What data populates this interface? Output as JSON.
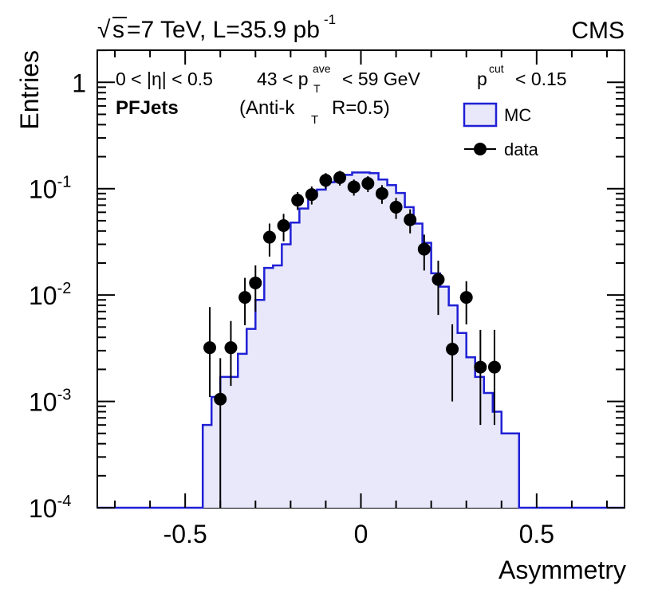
{
  "header": {
    "energy_sqrt": "√",
    "energy_s": "s",
    "energy_rest": "=7 TeV, L=35.9 pb",
    "lumi_exp": "-1",
    "experiment": "CMS"
  },
  "annotations": {
    "eta_cut": "0 < |η| < 0.5",
    "pt_left": "43 < p",
    "pt_sub": "T",
    "pt_sup": "ave",
    "pt_right": "< 59 GeV",
    "pcut_p": "p",
    "pcut_sup": "cut",
    "pcut_right": "< 0.15",
    "jet_type": "PFJets",
    "algo_left": "(Anti-k",
    "algo_sub": "T",
    "algo_right": "R=0.5)"
  },
  "legend": {
    "mc_label": "MC",
    "data_label": "data"
  },
  "colors": {
    "mc_line": "#1f1fd6",
    "mc_fill": "#e8e8fa",
    "data_marker": "#000000"
  },
  "chart_data": {
    "type": "histogram",
    "title": "",
    "xlabel": "Asymmetry",
    "ylabel": "Entries",
    "xlim": [
      -0.75,
      0.75
    ],
    "ylim": [
      0.0001,
      2
    ],
    "yscale": "log",
    "xticks": [
      -0.5,
      0,
      0.5
    ],
    "xtick_labels": [
      "-0.5",
      "0",
      "0.5"
    ],
    "yticks": [
      {
        "value": 1,
        "base": "1",
        "exp": ""
      },
      {
        "value": 0.1,
        "base": "10",
        "exp": "-1"
      },
      {
        "value": 0.01,
        "base": "10",
        "exp": "-2"
      },
      {
        "value": 0.001,
        "base": "10",
        "exp": "-3"
      },
      {
        "value": 0.0001,
        "base": "10",
        "exp": "-4"
      }
    ],
    "series": [
      {
        "name": "MC",
        "kind": "step-histogram",
        "bin_edges": [
          -0.75,
          -0.45,
          -0.425,
          -0.4,
          -0.375,
          -0.35,
          -0.325,
          -0.3,
          -0.275,
          -0.25,
          -0.225,
          -0.2,
          -0.175,
          -0.15,
          -0.125,
          -0.1,
          -0.075,
          -0.05,
          -0.025,
          0,
          0.025,
          0.05,
          0.075,
          0.1,
          0.125,
          0.15,
          0.175,
          0.2,
          0.225,
          0.25,
          0.275,
          0.3,
          0.325,
          0.35,
          0.375,
          0.4,
          0.425,
          0.45,
          0.475,
          0.75
        ],
        "values": [
          0.0001,
          0.0006,
          0.0011,
          0.0017,
          0.0017,
          0.0028,
          0.0048,
          0.009,
          0.018,
          0.019,
          0.03,
          0.048,
          0.065,
          0.085,
          0.098,
          0.115,
          0.126,
          0.135,
          0.142,
          0.142,
          0.14,
          0.122,
          0.108,
          0.091,
          0.067,
          0.047,
          0.031,
          0.016,
          0.012,
          0.008,
          0.0044,
          0.0026,
          0.0017,
          0.0012,
          0.0008,
          0.0005,
          0.0005,
          0.0001,
          0.0001
        ]
      },
      {
        "name": "data",
        "kind": "points-with-errors",
        "x": [
          -0.43,
          -0.4,
          -0.37,
          -0.33,
          -0.3,
          -0.26,
          -0.22,
          -0.18,
          -0.14,
          -0.1,
          -0.06,
          -0.02,
          0.02,
          0.06,
          0.1,
          0.14,
          0.18,
          0.22,
          0.26,
          0.3,
          0.34,
          0.38
        ],
        "y": [
          0.0032,
          0.00105,
          0.0032,
          0.0095,
          0.013,
          0.035,
          0.045,
          0.078,
          0.088,
          0.12,
          0.127,
          0.104,
          0.112,
          0.09,
          0.067,
          0.051,
          0.027,
          0.014,
          0.0031,
          0.0095,
          0.0021,
          0.0021
        ],
        "err_low": [
          0.0021,
          0.001,
          0.0018,
          0.0043,
          0.006,
          0.012,
          0.013,
          0.015,
          0.017,
          0.02,
          0.02,
          0.018,
          0.019,
          0.018,
          0.015,
          0.013,
          0.01,
          0.0075,
          0.0021,
          0.0042,
          0.0015,
          0.0015
        ],
        "err_high": [
          0.0045,
          0.0015,
          0.0025,
          0.005,
          0.006,
          0.012,
          0.013,
          0.015,
          0.017,
          0.02,
          0.02,
          0.018,
          0.019,
          0.018,
          0.015,
          0.013,
          0.01,
          0.007,
          0.0022,
          0.004,
          0.0026,
          0.0026
        ]
      }
    ]
  }
}
